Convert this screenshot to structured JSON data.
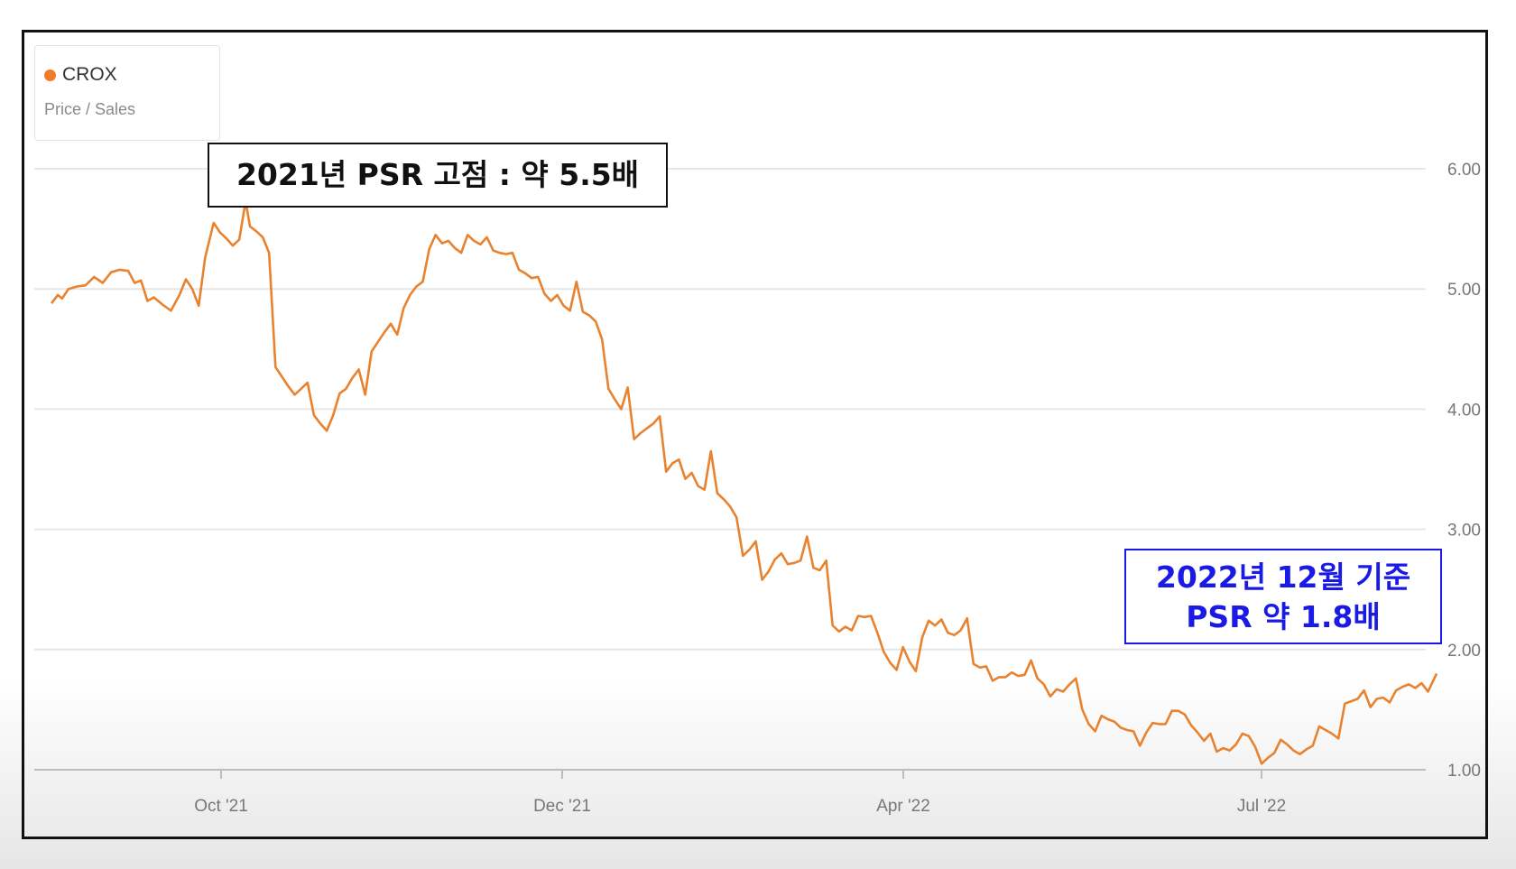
{
  "legend": {
    "series_name": "CROX",
    "metric": "Price / Sales",
    "series_color": "#f07c2a"
  },
  "annotations": {
    "high_2021": "2021년 PSR 고점 : 약 5.5배",
    "current_line1": "2022년 12월 기준",
    "current_line2": "PSR 약 1.8배",
    "high_color": "#111111",
    "current_color": "#1a1ae6"
  },
  "chart_data": {
    "type": "line",
    "title": "",
    "xlabel": "",
    "ylabel": "",
    "ylim": [
      1.0,
      6.0
    ],
    "y_ticks": [
      "1.00",
      "2.00",
      "3.00",
      "4.00",
      "5.00",
      "6.00"
    ],
    "x_ticks": [
      "Oct '21",
      "Dec '21",
      "Apr '22",
      "Jul '22"
    ],
    "grid": "horizontal",
    "legend_position": "top-left",
    "series": [
      {
        "name": "CROX",
        "color": "#e9822f",
        "points": [
          [
            0.0,
            4.88
          ],
          [
            0.3,
            4.95
          ],
          [
            0.5,
            4.92
          ],
          [
            0.8,
            5.0
          ],
          [
            1.2,
            5.02
          ],
          [
            1.6,
            5.03
          ],
          [
            2.0,
            5.1
          ],
          [
            2.4,
            5.05
          ],
          [
            2.8,
            5.14
          ],
          [
            3.2,
            5.16
          ],
          [
            3.6,
            5.15
          ],
          [
            3.9,
            5.05
          ],
          [
            4.2,
            5.07
          ],
          [
            4.5,
            4.9
          ],
          [
            4.8,
            4.93
          ],
          [
            5.2,
            4.87
          ],
          [
            5.6,
            4.82
          ],
          [
            6.0,
            4.95
          ],
          [
            6.3,
            5.08
          ],
          [
            6.6,
            5.0
          ],
          [
            6.9,
            4.86
          ],
          [
            7.2,
            5.26
          ],
          [
            7.6,
            5.55
          ],
          [
            7.9,
            5.47
          ],
          [
            8.2,
            5.42
          ],
          [
            8.5,
            5.36
          ],
          [
            8.8,
            5.41
          ],
          [
            9.1,
            5.73
          ],
          [
            9.3,
            5.52
          ],
          [
            9.6,
            5.48
          ],
          [
            9.9,
            5.43
          ],
          [
            10.2,
            5.3
          ],
          [
            10.5,
            4.35
          ],
          [
            10.8,
            4.27
          ],
          [
            11.1,
            4.19
          ],
          [
            11.4,
            4.12
          ],
          [
            11.7,
            4.17
          ],
          [
            12.0,
            4.22
          ],
          [
            12.3,
            3.95
          ],
          [
            12.6,
            3.88
          ],
          [
            12.9,
            3.82
          ],
          [
            13.2,
            3.95
          ],
          [
            13.5,
            4.13
          ],
          [
            13.8,
            4.17
          ],
          [
            14.1,
            4.26
          ],
          [
            14.4,
            4.33
          ],
          [
            14.7,
            4.12
          ],
          [
            15.0,
            4.48
          ],
          [
            15.3,
            4.56
          ],
          [
            15.6,
            4.64
          ],
          [
            15.9,
            4.71
          ],
          [
            16.2,
            4.62
          ],
          [
            16.5,
            4.84
          ],
          [
            16.8,
            4.95
          ],
          [
            17.1,
            5.02
          ],
          [
            17.4,
            5.06
          ],
          [
            17.7,
            5.33
          ],
          [
            18.0,
            5.45
          ],
          [
            18.3,
            5.38
          ],
          [
            18.6,
            5.4
          ],
          [
            18.9,
            5.34
          ],
          [
            19.2,
            5.3
          ],
          [
            19.5,
            5.45
          ],
          [
            19.8,
            5.4
          ],
          [
            20.1,
            5.37
          ],
          [
            20.4,
            5.43
          ],
          [
            20.7,
            5.32
          ],
          [
            21.0,
            5.3
          ],
          [
            21.3,
            5.29
          ],
          [
            21.6,
            5.3
          ],
          [
            21.9,
            5.16
          ],
          [
            22.2,
            5.13
          ],
          [
            22.5,
            5.09
          ],
          [
            22.8,
            5.1
          ],
          [
            23.1,
            4.96
          ],
          [
            23.4,
            4.9
          ],
          [
            23.7,
            4.95
          ],
          [
            24.0,
            4.86
          ],
          [
            24.3,
            4.82
          ],
          [
            24.6,
            5.06
          ],
          [
            24.9,
            4.81
          ],
          [
            25.2,
            4.78
          ],
          [
            25.5,
            4.73
          ],
          [
            25.8,
            4.58
          ],
          [
            26.1,
            4.17
          ],
          [
            26.4,
            4.08
          ],
          [
            26.7,
            4.0
          ],
          [
            27.0,
            4.18
          ],
          [
            27.3,
            3.75
          ],
          [
            27.6,
            3.8
          ],
          [
            27.9,
            3.84
          ],
          [
            28.2,
            3.88
          ],
          [
            28.5,
            3.94
          ],
          [
            28.8,
            3.48
          ],
          [
            29.1,
            3.55
          ],
          [
            29.4,
            3.58
          ],
          [
            29.7,
            3.42
          ],
          [
            30.0,
            3.47
          ],
          [
            30.3,
            3.36
          ],
          [
            30.6,
            3.33
          ],
          [
            30.9,
            3.65
          ],
          [
            31.2,
            3.3
          ],
          [
            31.5,
            3.25
          ],
          [
            31.8,
            3.19
          ],
          [
            32.1,
            3.1
          ],
          [
            32.4,
            2.78
          ],
          [
            32.7,
            2.83
          ],
          [
            33.0,
            2.9
          ],
          [
            33.3,
            2.58
          ],
          [
            33.6,
            2.65
          ],
          [
            33.9,
            2.75
          ],
          [
            34.2,
            2.8
          ],
          [
            34.5,
            2.71
          ],
          [
            34.8,
            2.72
          ],
          [
            35.1,
            2.74
          ],
          [
            35.4,
            2.94
          ],
          [
            35.7,
            2.68
          ],
          [
            36.0,
            2.66
          ],
          [
            36.3,
            2.74
          ],
          [
            36.6,
            2.2
          ],
          [
            36.9,
            2.15
          ],
          [
            37.2,
            2.19
          ],
          [
            37.5,
            2.16
          ],
          [
            37.8,
            2.28
          ],
          [
            38.1,
            2.27
          ],
          [
            38.4,
            2.28
          ],
          [
            38.7,
            2.14
          ],
          [
            39.0,
            1.98
          ],
          [
            39.3,
            1.89
          ],
          [
            39.6,
            1.83
          ],
          [
            39.9,
            2.02
          ],
          [
            40.2,
            1.9
          ],
          [
            40.5,
            1.82
          ],
          [
            40.8,
            2.1
          ],
          [
            41.1,
            2.24
          ],
          [
            41.4,
            2.2
          ],
          [
            41.7,
            2.25
          ],
          [
            42.0,
            2.14
          ],
          [
            42.3,
            2.12
          ],
          [
            42.6,
            2.16
          ],
          [
            42.9,
            2.26
          ],
          [
            43.2,
            1.88
          ],
          [
            43.5,
            1.85
          ],
          [
            43.8,
            1.86
          ],
          [
            44.1,
            1.74
          ],
          [
            44.4,
            1.77
          ],
          [
            44.7,
            1.77
          ],
          [
            45.0,
            1.81
          ],
          [
            45.3,
            1.78
          ],
          [
            45.6,
            1.79
          ],
          [
            45.9,
            1.91
          ],
          [
            46.2,
            1.76
          ],
          [
            46.5,
            1.71
          ],
          [
            46.8,
            1.61
          ],
          [
            47.1,
            1.67
          ],
          [
            47.4,
            1.65
          ],
          [
            47.7,
            1.71
          ],
          [
            48.0,
            1.76
          ],
          [
            48.3,
            1.5
          ],
          [
            48.6,
            1.38
          ],
          [
            48.9,
            1.32
          ],
          [
            49.2,
            1.45
          ],
          [
            49.5,
            1.42
          ],
          [
            49.8,
            1.4
          ],
          [
            50.1,
            1.35
          ],
          [
            50.4,
            1.33
          ],
          [
            50.7,
            1.32
          ],
          [
            51.0,
            1.2
          ],
          [
            51.3,
            1.31
          ],
          [
            51.6,
            1.39
          ],
          [
            51.9,
            1.38
          ],
          [
            52.2,
            1.38
          ],
          [
            52.5,
            1.49
          ],
          [
            52.8,
            1.49
          ],
          [
            53.1,
            1.46
          ],
          [
            53.4,
            1.37
          ],
          [
            53.7,
            1.31
          ],
          [
            54.0,
            1.24
          ],
          [
            54.3,
            1.3
          ],
          [
            54.6,
            1.15
          ],
          [
            54.9,
            1.18
          ],
          [
            55.2,
            1.16
          ],
          [
            55.5,
            1.21
          ],
          [
            55.8,
            1.3
          ],
          [
            56.1,
            1.28
          ],
          [
            56.4,
            1.19
          ],
          [
            56.7,
            1.05
          ],
          [
            57.0,
            1.1
          ],
          [
            57.3,
            1.14
          ],
          [
            57.6,
            1.25
          ],
          [
            57.9,
            1.21
          ],
          [
            58.2,
            1.16
          ],
          [
            58.5,
            1.13
          ],
          [
            58.8,
            1.17
          ],
          [
            59.1,
            1.2
          ],
          [
            59.4,
            1.36
          ],
          [
            59.7,
            1.33
          ],
          [
            60.0,
            1.3
          ],
          [
            60.3,
            1.26
          ],
          [
            60.6,
            1.55
          ],
          [
            60.9,
            1.57
          ],
          [
            61.2,
            1.59
          ],
          [
            61.5,
            1.66
          ],
          [
            61.8,
            1.52
          ],
          [
            62.1,
            1.59
          ],
          [
            62.4,
            1.6
          ],
          [
            62.7,
            1.56
          ],
          [
            63.0,
            1.66
          ],
          [
            63.3,
            1.69
          ],
          [
            63.6,
            1.71
          ],
          [
            63.9,
            1.68
          ],
          [
            64.2,
            1.72
          ],
          [
            64.5,
            1.65
          ],
          [
            64.9,
            1.8
          ]
        ]
      }
    ]
  }
}
